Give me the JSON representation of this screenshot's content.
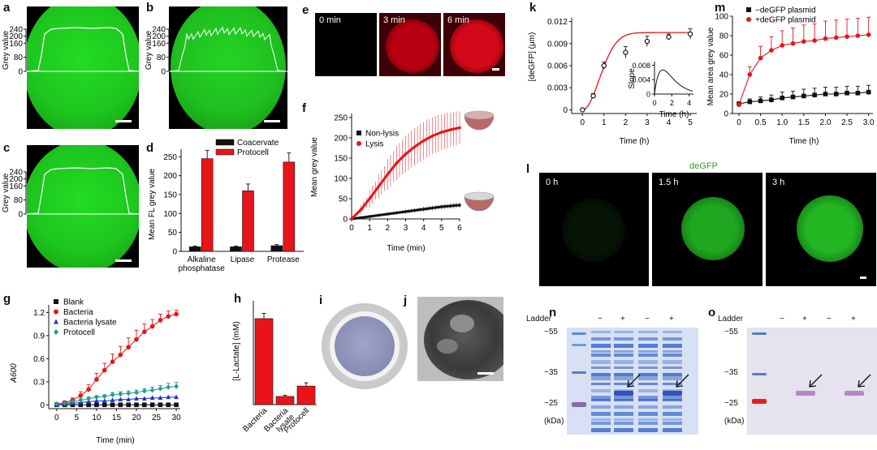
{
  "labels": {
    "a": "a",
    "b": "b",
    "c": "c",
    "d": "d",
    "e": "e",
    "f": "f",
    "g": "g",
    "h": "h",
    "i": "i",
    "j": "j",
    "k": "k",
    "l": "l",
    "m": "m",
    "n": "n",
    "o": "o"
  },
  "profile_axis": {
    "ylabel": "Grey value",
    "ticks": [
      "240",
      "200",
      "160",
      "80",
      "0"
    ]
  },
  "panel_e": {
    "times": [
      "0 min",
      "3 min",
      "6 min"
    ],
    "colors": [
      "#000000",
      "#b80010",
      "#d40818"
    ]
  },
  "panel_l": {
    "title": "deGFP",
    "times": [
      "0 h",
      "1.5 h",
      "3 h"
    ]
  },
  "gels": {
    "ladder_label": "Ladder",
    "markers": [
      "~55",
      "~35",
      "~25"
    ],
    "unit": "(kDa)",
    "lane_signs": [
      "−",
      "+",
      "−",
      "+"
    ]
  },
  "chart_data": [
    {
      "id": "d",
      "type": "bar",
      "categories": [
        "Alkaline\nphosphatase",
        "Lipase",
        "Protease"
      ],
      "category_lines": [
        [
          "Alkaline",
          "phosphatase"
        ],
        [
          "Lipase"
        ],
        [
          "Protease"
        ]
      ],
      "series": [
        {
          "name": "Coacervate",
          "color": "#111111",
          "values": [
            12,
            12,
            15
          ],
          "err": [
            2,
            2,
            3
          ]
        },
        {
          "name": "Protocell",
          "color": "#e8141a",
          "values": [
            245,
            160,
            236
          ],
          "err": [
            22,
            18,
            24
          ]
        }
      ],
      "ylabel": "Mean FL grey value",
      "ylim": [
        0,
        270
      ],
      "yticks": [
        "0",
        "50",
        "100",
        "150",
        "200",
        "250"
      ],
      "ytick_values": [
        0,
        50,
        100,
        150,
        200,
        250
      ],
      "legend": "top"
    },
    {
      "id": "f",
      "type": "line",
      "xlabel": "Time (min)",
      "ylabel": "Mean grey value",
      "xlim": [
        0,
        6
      ],
      "ylim": [
        0,
        260
      ],
      "xticks": [
        "0",
        "1",
        "2",
        "3",
        "4",
        "5",
        "6"
      ],
      "xtick_values": [
        0,
        1,
        2,
        3,
        4,
        5,
        6
      ],
      "yticks": [
        "0",
        "50",
        "100",
        "150",
        "200",
        "250"
      ],
      "ytick_values": [
        0,
        50,
        100,
        150,
        200,
        250
      ],
      "series": [
        {
          "name": "Non-lysis",
          "color": "#111111",
          "x": [
            0,
            0.5,
            1,
            1.5,
            2,
            2.5,
            3,
            3.5,
            4,
            4.5,
            5,
            5.5,
            6
          ],
          "y": [
            0,
            3,
            6,
            9,
            12,
            15,
            18,
            21,
            24,
            27,
            30,
            32,
            34
          ],
          "err": [
            1,
            2,
            3,
            3,
            4,
            4,
            5,
            5,
            6,
            6,
            6,
            7,
            7
          ]
        },
        {
          "name": "Lysis",
          "color": "#e8141a",
          "x": [
            0,
            0.5,
            1,
            1.5,
            2,
            2.5,
            3,
            3.5,
            4,
            4.5,
            5,
            5.5,
            6
          ],
          "y": [
            0,
            22,
            50,
            80,
            110,
            138,
            160,
            178,
            193,
            205,
            214,
            220,
            225
          ],
          "err": [
            3,
            12,
            22,
            30,
            38,
            42,
            45,
            46,
            46,
            45,
            44,
            42,
            40
          ]
        }
      ],
      "legend": "top-left"
    },
    {
      "id": "g",
      "type": "line",
      "xlabel": "Time (min)",
      "ylabel": "A600",
      "xlim": [
        0,
        30
      ],
      "ylim": [
        0,
        1.3
      ],
      "xticks": [
        "0",
        "5",
        "10",
        "15",
        "20",
        "25",
        "30"
      ],
      "xtick_values": [
        0,
        5,
        10,
        15,
        20,
        25,
        30
      ],
      "yticks": [
        "0",
        "0.3",
        "0.6",
        "0.9",
        "1.2"
      ],
      "ytick_values": [
        0,
        0.3,
        0.6,
        0.9,
        1.2
      ],
      "series": [
        {
          "name": "Blank",
          "color": "#111111",
          "marker": "square",
          "x": [
            0,
            2,
            4,
            6,
            8,
            10,
            12,
            14,
            16,
            18,
            20,
            22,
            24,
            26,
            28,
            30
          ],
          "y": [
            0,
            0,
            0,
            0,
            0,
            0,
            0,
            0,
            0,
            0,
            0,
            0,
            0,
            0,
            0,
            0
          ]
        },
        {
          "name": "Bacteria",
          "color": "#e8141a",
          "marker": "circle",
          "x": [
            0,
            2,
            4,
            6,
            8,
            10,
            12,
            14,
            16,
            18,
            20,
            22,
            24,
            26,
            28,
            30
          ],
          "y": [
            0.01,
            0.03,
            0.06,
            0.12,
            0.2,
            0.33,
            0.45,
            0.56,
            0.65,
            0.75,
            0.85,
            0.95,
            1.02,
            1.1,
            1.15,
            1.18
          ],
          "err": [
            0.01,
            0.02,
            0.03,
            0.05,
            0.06,
            0.08,
            0.09,
            0.1,
            0.11,
            0.12,
            0.12,
            0.1,
            0.09,
            0.08,
            0.07,
            0.05
          ]
        },
        {
          "name": "Bacteria lysate",
          "color": "#1a2fd0",
          "marker": "triangle",
          "x": [
            0,
            2,
            4,
            6,
            8,
            10,
            12,
            14,
            16,
            18,
            20,
            22,
            24,
            26,
            28,
            30
          ],
          "y": [
            0,
            0.01,
            0.02,
            0.03,
            0.04,
            0.05,
            0.05,
            0.06,
            0.07,
            0.07,
            0.08,
            0.08,
            0.09,
            0.09,
            0.1,
            0.1
          ]
        },
        {
          "name": "Protocell",
          "color": "#1e9e8e",
          "marker": "diamond",
          "x": [
            0,
            2,
            4,
            6,
            8,
            10,
            12,
            14,
            16,
            18,
            20,
            22,
            24,
            26,
            28,
            30
          ],
          "y": [
            0.01,
            0.02,
            0.04,
            0.06,
            0.08,
            0.1,
            0.11,
            0.13,
            0.14,
            0.15,
            0.16,
            0.18,
            0.19,
            0.21,
            0.23,
            0.24
          ],
          "err": [
            0.01,
            0.01,
            0.01,
            0.02,
            0.02,
            0.02,
            0.02,
            0.03,
            0.03,
            0.03,
            0.03,
            0.03,
            0.04,
            0.04,
            0.05,
            0.05
          ]
        }
      ],
      "legend": "top-left"
    },
    {
      "id": "h",
      "type": "bar",
      "categories": [
        "Bacteria",
        "Bacteria lysate",
        "Protocell"
      ],
      "category_lines": [
        [
          "Bacteria"
        ],
        [
          "Bacteria",
          "lysate"
        ],
        [
          "Protocell"
        ]
      ],
      "series": [
        {
          "name": "",
          "color": "#e8141a",
          "values": [
            5.8,
            0.55,
            1.25
          ],
          "err": [
            0.35,
            0.08,
            0.22
          ]
        }
      ],
      "ylabel": "[L-Lactate] (mM)",
      "ylim": [
        0,
        7
      ]
    },
    {
      "id": "k",
      "type": "line",
      "xlabel": "Time (h)",
      "ylabel": "[deGFP] (μm)",
      "xlim": [
        0,
        5
      ],
      "ylim": [
        0,
        0.012
      ],
      "xticks": [
        "0",
        "1",
        "2",
        "3",
        "4",
        "5"
      ],
      "xtick_values": [
        0,
        1,
        2,
        3,
        4,
        5
      ],
      "yticks": [
        "0",
        "0.003",
        "0.006",
        "0.009",
        "0.012"
      ],
      "ytick_values": [
        0,
        0.003,
        0.006,
        0.009,
        0.012
      ],
      "series": [
        {
          "name": "",
          "color": "#111111",
          "x": [
            0,
            0.5,
            1,
            2,
            3,
            4,
            5
          ],
          "y": [
            0,
            0.0019,
            0.006,
            0.0078,
            0.0093,
            0.0099,
            0.0103
          ],
          "err": [
            0.0001,
            0.0003,
            0.0005,
            0.0008,
            0.0007,
            0.0004,
            0.0007
          ]
        }
      ],
      "fit_color": "#e8141a",
      "inset": {
        "xlabel": "Time (h)",
        "ylabel": "Slope",
        "xticks": [
          "0",
          "2",
          "4"
        ],
        "xtick_values": [
          0,
          2,
          4
        ],
        "yticks": [
          "0",
          "0.004",
          "0.008"
        ],
        "ytick_values": [
          0,
          0.004,
          0.008
        ],
        "xlim": [
          0,
          4.5
        ],
        "ylim": [
          0,
          0.009
        ]
      }
    },
    {
      "id": "m",
      "type": "line",
      "xlabel": "Time (h)",
      "ylabel": "Mean area grey value",
      "xlim": [
        0,
        3
      ],
      "ylim": [
        0,
        100
      ],
      "xticks": [
        "0",
        "0.5",
        "1.0",
        "1.5",
        "2.0",
        "2.5",
        "3.0"
      ],
      "xtick_values": [
        0,
        0.5,
        1,
        1.5,
        2,
        2.5,
        3
      ],
      "yticks": [
        "0",
        "20",
        "40",
        "60",
        "80",
        "100"
      ],
      "ytick_values": [
        0,
        20,
        40,
        60,
        80,
        100
      ],
      "series": [
        {
          "name": "−deGFP plasmid",
          "color": "#111111",
          "marker": "square",
          "x": [
            0,
            0.25,
            0.5,
            0.75,
            1,
            1.25,
            1.5,
            1.75,
            2,
            2.25,
            2.5,
            2.75,
            3
          ],
          "y": [
            10,
            12,
            13,
            14,
            16,
            17,
            18,
            19,
            20,
            20,
            21,
            21,
            22
          ],
          "err": [
            2,
            3,
            4,
            5,
            6,
            6,
            7,
            7,
            7,
            7,
            7,
            7,
            7
          ]
        },
        {
          "name": "+deGFP plasmid",
          "color": "#e8141a",
          "marker": "circle",
          "x": [
            0,
            0.25,
            0.5,
            0.75,
            1,
            1.25,
            1.5,
            1.75,
            2,
            2.25,
            2.5,
            2.75,
            3
          ],
          "y": [
            9,
            40,
            57,
            65,
            70,
            72,
            74,
            75,
            77,
            78,
            79,
            80,
            81
          ],
          "err": [
            2,
            8,
            12,
            14,
            15,
            16,
            17,
            17,
            18,
            18,
            18,
            18,
            18
          ]
        }
      ],
      "legend": "top-left"
    }
  ]
}
